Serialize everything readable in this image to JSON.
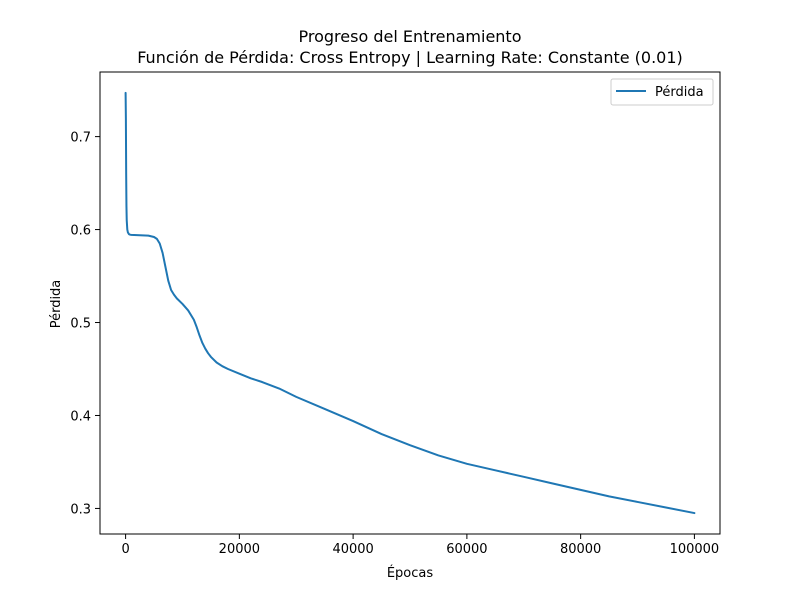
{
  "chart_data": {
    "type": "line",
    "title": "Progreso del Entrenamiento",
    "subtitle": "Función de Pérdida: Cross Entropy | Learning Rate: Constante (0.01)",
    "xlabel": "Épocas",
    "ylabel": "Pérdida",
    "xlim": [
      -4500,
      104500
    ],
    "ylim": [
      0.2725,
      0.7695
    ],
    "x_ticks": [
      0,
      20000,
      40000,
      60000,
      80000,
      100000
    ],
    "x_tick_labels": [
      "0",
      "20000",
      "40000",
      "60000",
      "80000",
      "100000"
    ],
    "y_ticks": [
      0.3,
      0.4,
      0.5,
      0.6,
      0.7
    ],
    "y_tick_labels": [
      "0.3",
      "0.4",
      "0.5",
      "0.6",
      "0.7"
    ],
    "grid": false,
    "legend_position": "top-right",
    "series": [
      {
        "name": "Pérdida",
        "color": "#1f77b4",
        "x": [
          0,
          50,
          100,
          150,
          200,
          300,
          400,
          600,
          800,
          1000,
          2000,
          3000,
          4000,
          5000,
          5500,
          6000,
          6500,
          7000,
          7500,
          8000,
          8500,
          9000,
          10000,
          11000,
          12000,
          12500,
          13000,
          13500,
          14000,
          14500,
          15000,
          16000,
          17000,
          18000,
          20000,
          22000,
          24000,
          27000,
          30000,
          35000,
          40000,
          45000,
          50000,
          55000,
          60000,
          65000,
          70000,
          75000,
          80000,
          85000,
          90000,
          95000,
          100000
        ],
        "y": [
          0.747,
          0.72,
          0.66,
          0.625,
          0.61,
          0.6,
          0.597,
          0.595,
          0.5945,
          0.5943,
          0.594,
          0.5938,
          0.5935,
          0.592,
          0.59,
          0.585,
          0.575,
          0.56,
          0.545,
          0.535,
          0.53,
          0.526,
          0.52,
          0.513,
          0.503,
          0.495,
          0.486,
          0.478,
          0.472,
          0.467,
          0.463,
          0.457,
          0.453,
          0.45,
          0.445,
          0.44,
          0.436,
          0.429,
          0.42,
          0.407,
          0.394,
          0.38,
          0.368,
          0.357,
          0.348,
          0.341,
          0.334,
          0.327,
          0.32,
          0.313,
          0.307,
          0.301,
          0.295
        ]
      }
    ]
  }
}
